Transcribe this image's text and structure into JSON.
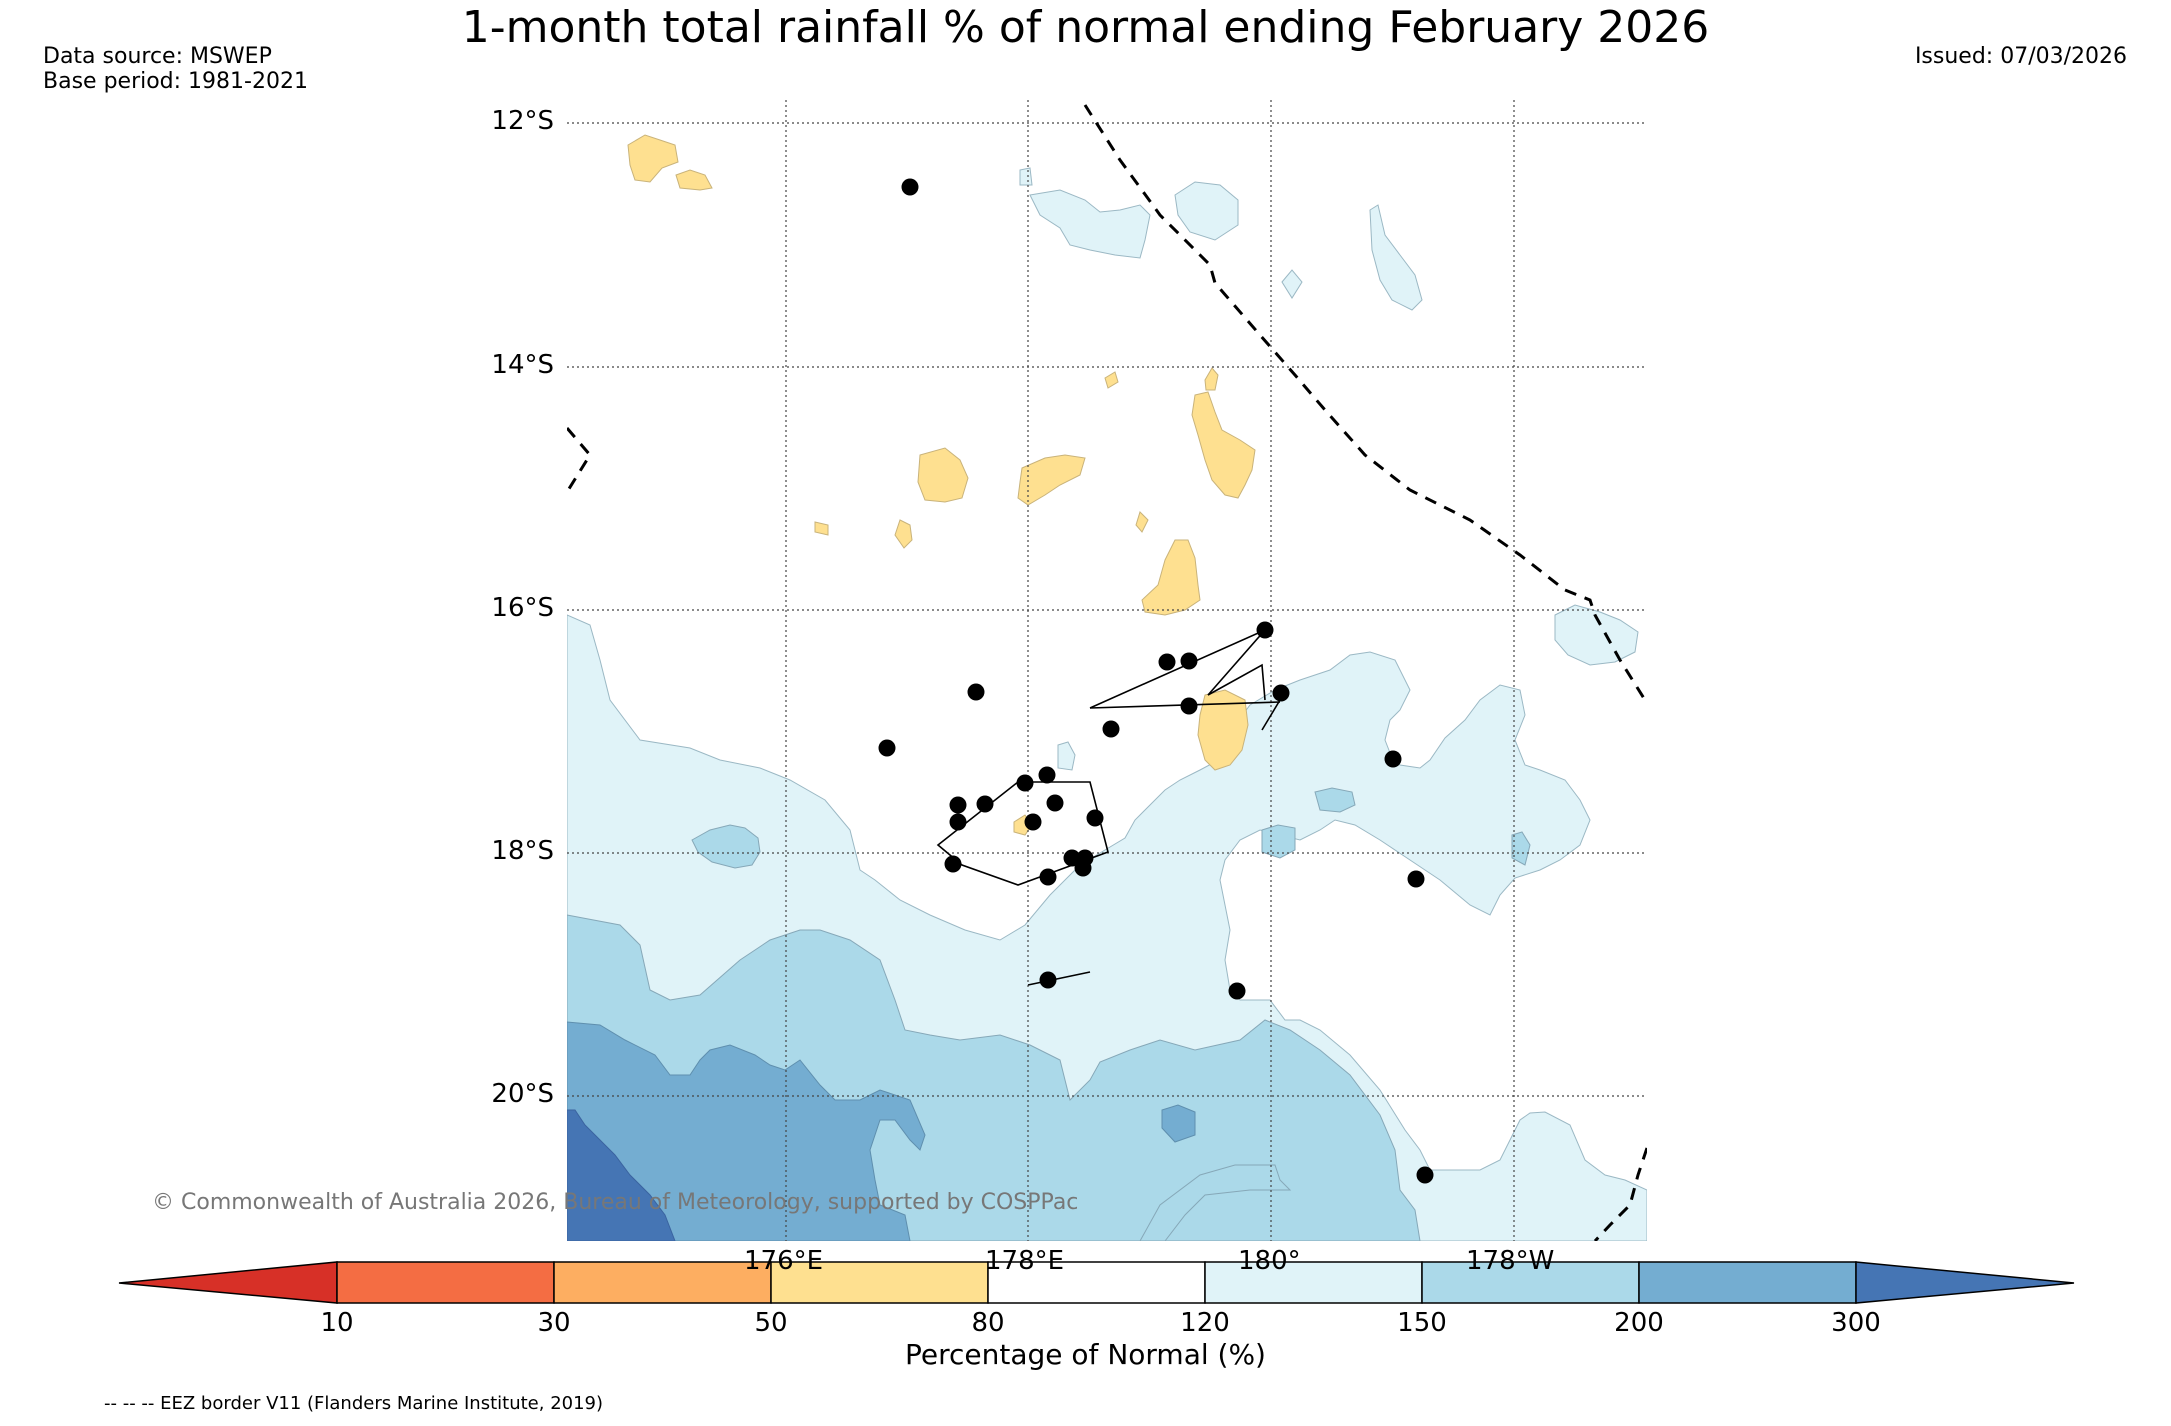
{
  "header": {
    "title": "1-month total rainfall % of normal ending February 2026",
    "data_source": "Data source: MSWEP",
    "base_period": "Base period: 1981-2021",
    "issued": "Issued: 07/03/2026"
  },
  "map": {
    "lat_labels": [
      "12°S",
      "14°S",
      "16°S",
      "18°S",
      "20°S"
    ],
    "lon_labels": [
      "176°E",
      "178°E",
      "180°",
      "178°W"
    ],
    "copyright": "© Commonwealth of Australia 2026, Bureau of Meteorology, supported by COSPPac",
    "colors": {
      "lt10": "#d73027",
      "c10_30": "#f46d43",
      "c30_50": "#fdae61",
      "c50_80": "#fee090",
      "c80_120": "#ffffff",
      "c120_150": "#e0f3f8",
      "c150_200": "#abd9e9",
      "c200_300": "#74add1",
      "gt300": "#4575b4"
    }
  },
  "colorbar": {
    "ticks": [
      "10",
      "30",
      "50",
      "80",
      "120",
      "150",
      "200",
      "300"
    ],
    "title": "Percentage of Normal (%)"
  },
  "footnote": "-- -- -- EEZ border V11 (Flanders Marine Institute, 2019)"
}
